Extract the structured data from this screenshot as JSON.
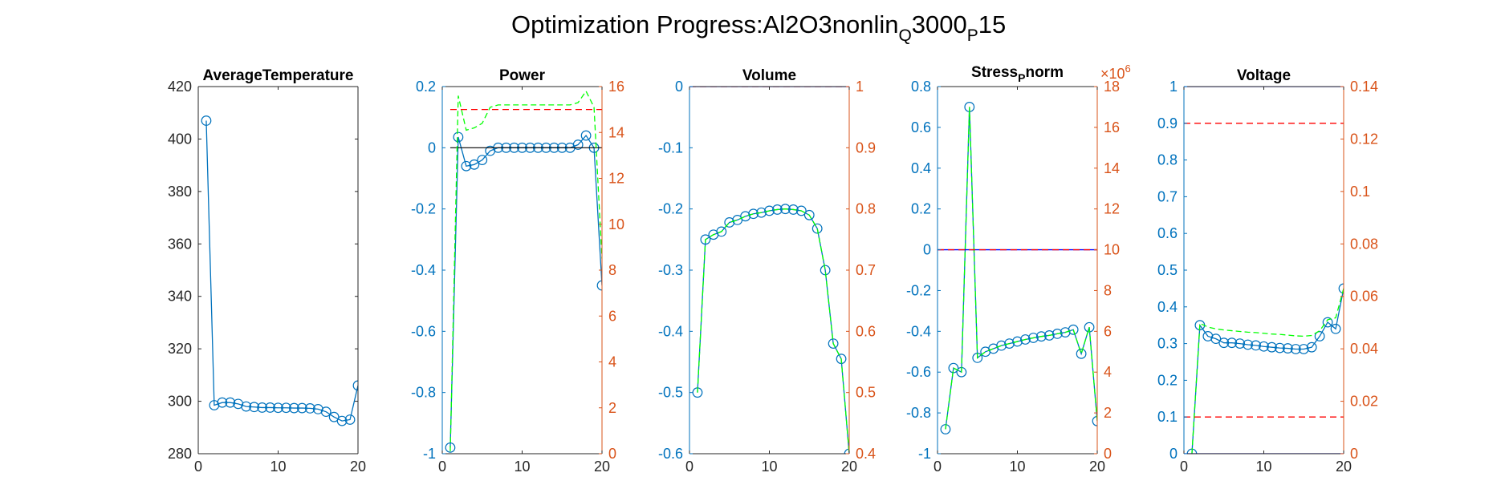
{
  "figure": {
    "title_main": "Optimization Progress:Al2O3nonlin",
    "title_sub1": "Q",
    "title_mid": "3000",
    "title_sub2": "P",
    "title_end": "15"
  },
  "colors": {
    "left_axis": "#0072BD",
    "right_axis": "#D95319",
    "marker_line": "#0072BD",
    "green_dashed": "#00FF00",
    "red_dashed": "#FF0000",
    "blue_limit": "#0000FF",
    "black_line": "#000000",
    "text": "#262626"
  },
  "chart_data": [
    {
      "type": "line",
      "title": "AverageTemperature",
      "xlim": [
        0,
        20
      ],
      "xticks": [
        "0",
        "10",
        "20"
      ],
      "ylim": [
        280,
        420
      ],
      "yticks": [
        "280",
        "300",
        "320",
        "340",
        "360",
        "380",
        "400",
        "420"
      ],
      "left_axis_color": "black",
      "series": [
        {
          "style": "markers",
          "x": [
            1,
            2,
            3,
            4,
            5,
            6,
            7,
            8,
            9,
            10,
            11,
            12,
            13,
            14,
            15,
            16,
            17,
            18,
            19,
            20
          ],
          "y": [
            407,
            298.5,
            299.5,
            299.5,
            299,
            298,
            297.8,
            297.6,
            297.6,
            297.5,
            297.5,
            297.4,
            297.4,
            297.3,
            297,
            296,
            294,
            292.5,
            293,
            306
          ]
        }
      ]
    },
    {
      "type": "line",
      "title": "Power",
      "xlim": [
        0,
        20
      ],
      "xticks": [
        "0",
        "10",
        "20"
      ],
      "ylim": [
        -1,
        0.2
      ],
      "yticks": [
        "-1",
        "-0.8",
        "-0.6",
        "-0.4",
        "-0.2",
        "0",
        "0.2"
      ],
      "y2lim": [
        0,
        16
      ],
      "y2ticks": [
        "0",
        "2",
        "4",
        "6",
        "8",
        "10",
        "12",
        "14",
        "16"
      ],
      "series": [
        {
          "style": "markers",
          "axis": "left",
          "x": [
            1,
            2,
            3,
            4,
            5,
            6,
            7,
            8,
            9,
            10,
            11,
            12,
            13,
            14,
            15,
            16,
            17,
            18,
            19,
            20
          ],
          "y": [
            -0.98,
            0.035,
            -0.06,
            -0.055,
            -0.04,
            -0.01,
            0,
            0,
            0,
            0,
            0,
            0,
            0,
            0,
            0,
            0,
            0.01,
            0.04,
            0,
            -0.45
          ]
        },
        {
          "style": "hline",
          "axis": "left",
          "color": "black",
          "y": 0,
          "x": [
            1,
            20
          ]
        },
        {
          "style": "green-dashed",
          "axis": "right",
          "x": [
            1,
            2,
            3,
            4,
            5,
            6,
            7,
            8,
            9,
            10,
            11,
            12,
            13,
            14,
            15,
            16,
            17,
            18,
            19,
            20
          ],
          "y": [
            0.1,
            15.6,
            14.1,
            14.2,
            14.4,
            15.1,
            15.2,
            15.2,
            15.2,
            15.2,
            15.2,
            15.2,
            15.2,
            15.2,
            15.2,
            15.2,
            15.3,
            15.8,
            15.1,
            8.5
          ]
        },
        {
          "style": "red-dashed",
          "axis": "right",
          "x": [
            1,
            20
          ],
          "y": [
            15,
            15
          ]
        }
      ]
    },
    {
      "type": "line",
      "title": "Volume",
      "xlim": [
        0,
        20
      ],
      "xticks": [
        "0",
        "10",
        "20"
      ],
      "ylim": [
        -0.6,
        0
      ],
      "yticks": [
        "-0.6",
        "-0.5",
        "-0.4",
        "-0.3",
        "-0.2",
        "-0.1",
        "0"
      ],
      "y2lim": [
        0.4,
        1
      ],
      "y2ticks": [
        "0.4",
        "0.5",
        "0.6",
        "0.7",
        "0.8",
        "0.9",
        "1"
      ],
      "series": [
        {
          "style": "markers",
          "axis": "left",
          "x": [
            1,
            2,
            3,
            4,
            5,
            6,
            7,
            8,
            9,
            10,
            11,
            12,
            13,
            14,
            15,
            16,
            17,
            18,
            19,
            20
          ],
          "y": [
            -0.5,
            -0.25,
            -0.242,
            -0.237,
            -0.222,
            -0.218,
            -0.212,
            -0.208,
            -0.206,
            -0.203,
            -0.201,
            -0.2,
            -0.201,
            -0.203,
            -0.21,
            -0.232,
            -0.3,
            -0.42,
            -0.445,
            -0.6
          ]
        },
        {
          "style": "green-dashed",
          "axis": "left",
          "x": [
            1,
            2,
            3,
            4,
            5,
            6,
            7,
            8,
            9,
            10,
            11,
            12,
            13,
            14,
            15,
            16,
            17,
            18,
            19,
            20
          ],
          "y": [
            -0.5,
            -0.25,
            -0.242,
            -0.237,
            -0.222,
            -0.218,
            -0.212,
            -0.208,
            -0.206,
            -0.203,
            -0.201,
            -0.2,
            -0.201,
            -0.203,
            -0.21,
            -0.232,
            -0.3,
            -0.42,
            -0.445,
            -0.6
          ]
        },
        {
          "style": "red-dashed",
          "axis": "right",
          "x": [
            0,
            20
          ],
          "y": [
            1,
            1
          ]
        },
        {
          "style": "blue-limit",
          "axis": "left",
          "x": [
            0,
            20
          ],
          "y": [
            0,
            0
          ]
        }
      ]
    },
    {
      "type": "line",
      "title_main": "Stress",
      "title_sub": "P",
      "title_end": "norm",
      "exponent_label": "×10",
      "exponent_power": "6",
      "xlim": [
        0,
        20
      ],
      "xticks": [
        "0",
        "10",
        "20"
      ],
      "ylim": [
        -1,
        0.8
      ],
      "yticks": [
        "-1",
        "-0.8",
        "-0.6",
        "-0.4",
        "-0.2",
        "0",
        "0.2",
        "0.4",
        "0.6",
        "0.8"
      ],
      "y2lim": [
        0,
        18
      ],
      "y2ticks": [
        "0",
        "2",
        "4",
        "6",
        "8",
        "10",
        "12",
        "14",
        "16",
        "18"
      ],
      "series": [
        {
          "style": "markers",
          "axis": "left",
          "x": [
            1,
            2,
            3,
            4,
            5,
            6,
            7,
            8,
            9,
            10,
            11,
            12,
            13,
            14,
            15,
            16,
            17,
            18,
            19,
            20
          ],
          "y": [
            -0.88,
            -0.58,
            -0.6,
            0.7,
            -0.53,
            -0.5,
            -0.485,
            -0.47,
            -0.46,
            -0.45,
            -0.44,
            -0.432,
            -0.425,
            -0.42,
            -0.412,
            -0.405,
            -0.392,
            -0.51,
            -0.38,
            -0.84
          ]
        },
        {
          "style": "green-dashed",
          "axis": "left",
          "x": [
            1,
            2,
            3,
            4,
            5,
            6,
            7,
            8,
            9,
            10,
            11,
            12,
            13,
            14,
            15,
            16,
            17,
            18,
            19,
            20
          ],
          "y": [
            -0.88,
            -0.58,
            -0.6,
            0.7,
            -0.53,
            -0.5,
            -0.485,
            -0.47,
            -0.46,
            -0.45,
            -0.44,
            -0.432,
            -0.425,
            -0.42,
            -0.412,
            -0.405,
            -0.392,
            -0.51,
            -0.38,
            -0.84
          ]
        },
        {
          "style": "blue-limit",
          "axis": "left",
          "x": [
            0,
            20
          ],
          "y": [
            0,
            0
          ]
        },
        {
          "style": "red-dashed",
          "axis": "right",
          "x": [
            0,
            20
          ],
          "y": [
            10,
            10
          ]
        }
      ]
    },
    {
      "type": "line",
      "title": "Voltage",
      "xlim": [
        0,
        20
      ],
      "xticks": [
        "0",
        "10",
        "20"
      ],
      "ylim": [
        0,
        1
      ],
      "yticks": [
        "0",
        "0.1",
        "0.2",
        "0.3",
        "0.4",
        "0.5",
        "0.6",
        "0.7",
        "0.8",
        "0.9",
        "1"
      ],
      "y2lim": [
        0,
        0.14
      ],
      "y2ticks": [
        "0",
        "0.02",
        "0.04",
        "0.06",
        "0.08",
        "0.1",
        "0.12",
        "0.14"
      ],
      "series": [
        {
          "style": "markers",
          "axis": "left",
          "x": [
            1,
            2,
            3,
            4,
            5,
            6,
            7,
            8,
            9,
            10,
            11,
            12,
            13,
            14,
            15,
            16,
            17,
            18,
            19,
            20
          ],
          "y": [
            0,
            0.35,
            0.32,
            0.313,
            0.302,
            0.302,
            0.3,
            0.297,
            0.295,
            0.292,
            0.29,
            0.288,
            0.287,
            0.285,
            0.285,
            0.29,
            0.32,
            0.358,
            0.34,
            0.45
          ]
        },
        {
          "style": "green-dashed",
          "axis": "left",
          "x": [
            1,
            2,
            3,
            4,
            5,
            6,
            7,
            8,
            9,
            10,
            11,
            12,
            13,
            14,
            15,
            16,
            17,
            18,
            19,
            20
          ],
          "y": [
            0,
            0.355,
            0.345,
            0.34,
            0.337,
            0.335,
            0.333,
            0.331,
            0.33,
            0.328,
            0.326,
            0.325,
            0.323,
            0.321,
            0.32,
            0.322,
            0.335,
            0.365,
            0.37,
            0.45
          ]
        },
        {
          "style": "blue-limit",
          "axis": "left",
          "x": [
            0,
            20
          ],
          "y": [
            1,
            1
          ]
        },
        {
          "style": "blue-limit",
          "axis": "left",
          "x": [
            0,
            20
          ],
          "y": [
            0,
            0
          ]
        },
        {
          "style": "red-dashed",
          "axis": "left",
          "x": [
            0,
            20
          ],
          "y": [
            0.9,
            0.9
          ]
        },
        {
          "style": "red-dashed",
          "axis": "left",
          "x": [
            0,
            20
          ],
          "y": [
            0.1,
            0.1
          ]
        }
      ]
    }
  ]
}
